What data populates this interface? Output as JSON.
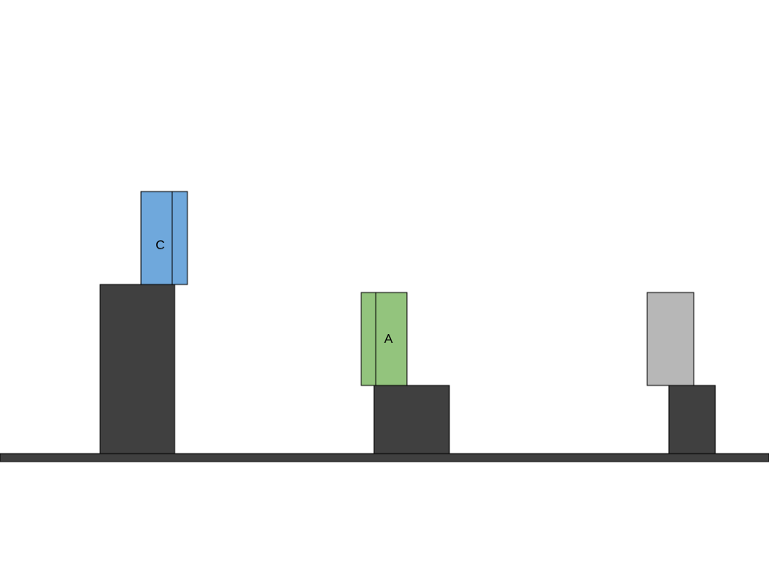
{
  "scene": {
    "background_color": "#ffffff",
    "ground_color": "#404040",
    "pedestal_color": "#404040",
    "outline_color": "#000000"
  },
  "blocks": [
    {
      "label": "C",
      "color": "#6fa8dc",
      "has_divider": true
    },
    {
      "label": "A",
      "color": "#93c47d",
      "has_divider": true
    },
    {
      "label": "",
      "color": "#b7b7b7",
      "has_divider": false
    }
  ]
}
